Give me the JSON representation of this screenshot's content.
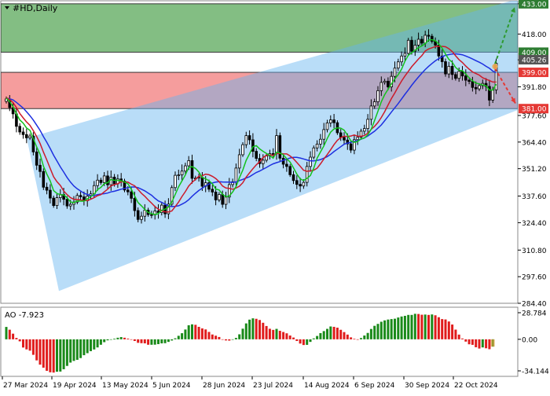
{
  "symbol_label": "#HD,Daily",
  "chart_data": [
    {
      "type": "candlestick",
      "title": "#HD,Daily",
      "y_ticks": [
        "433.00",
        "418.00",
        "405.20",
        "391.80",
        "377.60",
        "364.40",
        "351.20",
        "337.60",
        "324.40",
        "310.80",
        "297.60",
        "284.40"
      ],
      "ylim": [
        284.4,
        434.5
      ],
      "x_tick_labels": [
        "27 Mar 2024",
        "19 Apr 2024",
        "13 May 2024",
        "5 Jun 2024",
        "28 Jun 2024",
        "23 Jul 2024",
        "14 Aug 2024",
        "6 Sep 2024",
        "30 Sep 2024",
        "22 Oct 2024"
      ],
      "price_labels": [
        {
          "value": 433.0,
          "text": "433.00",
          "color": "#2e7d32"
        },
        {
          "value": 409.0,
          "text": "409.00",
          "color": "#2e7d32"
        },
        {
          "value": 405.26,
          "text": "405.26",
          "color": "#555555"
        },
        {
          "value": 399.0,
          "text": "399.00",
          "color": "#e53935"
        },
        {
          "value": 381.0,
          "text": "381.00",
          "color": "#e53935"
        }
      ],
      "zones": [
        {
          "name": "resistance",
          "from": 409,
          "to": 433,
          "color": "#5aa85a"
        },
        {
          "name": "support",
          "from": 381,
          "to": 399,
          "color": "#f27c7c"
        }
      ],
      "channel": {
        "color": "#64b4f0",
        "upper": [
          [
            34,
            366.4
          ],
          [
            660,
            435.5
          ]
        ],
        "lower": [
          [
            75,
            290.5
          ],
          [
            660,
            380.5
          ]
        ]
      },
      "forecast_arrows": [
        {
          "color": "#2e9a2e",
          "from": [
            630,
            403.2
          ],
          "to": [
            655,
            431.3
          ]
        },
        {
          "color": "#e53935",
          "from": [
            630,
            400.9
          ],
          "to": [
            656,
            383.6
          ]
        }
      ],
      "closes": [
        385.8,
        381.5,
        378.4,
        372.2,
        369.4,
        368.1,
        366.5,
        367.4,
        359.5,
        352.9,
        349.8,
        342.0,
        340.5,
        336.6,
        332.9,
        336.8,
        338.4,
        336.0,
        332.7,
        333.5,
        334.6,
        337.9,
        337.2,
        335.3,
        337.6,
        338.7,
        342.8,
        345.5,
        344.3,
        347.6,
        343.2,
        347.0,
        343.7,
        346.1,
        345.0,
        340.6,
        339.7,
        336.5,
        330.4,
        326.0,
        327.6,
        330.6,
        328.4,
        328.3,
        330.2,
        329.4,
        333.1,
        328.8,
        333.6,
        341.8,
        347.9,
        348.1,
        350.0,
        352.6,
        355.2,
        346.4,
        346.5,
        346.9,
        342.5,
        344.2,
        341.0,
        339.6,
        335.7,
        338.4,
        333.5,
        337.1,
        343.3,
        344.7,
        351.5,
        358.1,
        363.1,
        367.6,
        365.5,
        359.8,
        356.3,
        353.7,
        355.4,
        357.5,
        358.7,
        358.6,
        367.6,
        356.4,
        353.4,
        352.3,
        348.2,
        345.3,
        343.4,
        342.6,
        344.4,
        352.3,
        356.9,
        361.5,
        363.4,
        365.8,
        370.6,
        373.9,
        375.4,
        374.0,
        369.0,
        366.7,
        365.4,
        363.5,
        360.4,
        365.6,
        366.8,
        369.8,
        371.1,
        375.7,
        382.3,
        384.4,
        389.9,
        394.0,
        394.6,
        391.8,
        397.0,
        401.1,
        404.2,
        407.1,
        408.4,
        414.9,
        409.5,
        412.5,
        415.4,
        413.5,
        417.4,
        416.9,
        414.4,
        412.5,
        407.1,
        404.3,
        398.2,
        402.0,
        397.9,
        396.0,
        399.5,
        397.2,
        395.1,
        394.5,
        391.5,
        390.8,
        392.4,
        393.5,
        392.0,
        385.2,
        390.3,
        403.5
      ],
      "ma_green": [
        386.2,
        384.5,
        382.0,
        378.4,
        375.4,
        373.8,
        371.4,
        370.2,
        366.1,
        362.0,
        358.4,
        352.4,
        348.5,
        345.1,
        340.3,
        338.9,
        338.3,
        338.2,
        336.8,
        334.7,
        334.3,
        335.2,
        335.1,
        335.1,
        336.2,
        337.3,
        338.5,
        340.8,
        341.9,
        343.8,
        344.3,
        345.8,
        345.4,
        345.4,
        345.2,
        344.6,
        343.7,
        341.0,
        337.7,
        334.4,
        332.8,
        331.0,
        329.5,
        328.9,
        328.4,
        328.9,
        330.6,
        331.1,
        332.2,
        334.7,
        338.4,
        342.2,
        345.1,
        348.1,
        351.8,
        352.2,
        351.3,
        349.5,
        346.8,
        346.2,
        345.2,
        343.7,
        341.1,
        340.6,
        338.5,
        337.3,
        337.7,
        339.6,
        342.3,
        346.7,
        350.5,
        355.3,
        358.6,
        362.1,
        362.6,
        361.0,
        359.8,
        358.8,
        357.7,
        356.4,
        359.4,
        359.0,
        358.1,
        356.1,
        354.5,
        351.6,
        348.5,
        346.1,
        345.3,
        346.4,
        347.8,
        351.4,
        356.4,
        359.5,
        362.5,
        366.2,
        369.3,
        370.9,
        371.4,
        371.3,
        370.3,
        367.8,
        365.0,
        364.3,
        364.7,
        366.0,
        366.4,
        368.0,
        370.7,
        375.1,
        379.7,
        384.4,
        387.9,
        390.6,
        393.2,
        395.7,
        397.8,
        400.6,
        404.5,
        407.5,
        408.7,
        410.0,
        411.3,
        412.1,
        413.3,
        415.0,
        415.2,
        414.6,
        413.1,
        411.0,
        408.1,
        405.4,
        404.0,
        401.4,
        400.0,
        399.8,
        398.2,
        396.3,
        394.8,
        393.7,
        393.2,
        392.7,
        392.4,
        390.2,
        390.2,
        393.1
      ],
      "ma_red": [
        386.4,
        385.5,
        384.0,
        381.5,
        378.6,
        376.4,
        374.4,
        372.7,
        370.1,
        367.1,
        363.7,
        359.4,
        355.5,
        351.3,
        347.2,
        344.7,
        342.9,
        340.1,
        338.3,
        336.8,
        336.0,
        335.9,
        335.7,
        335.3,
        335.4,
        336.0,
        336.8,
        337.8,
        338.3,
        339.7,
        341.0,
        342.7,
        343.3,
        343.7,
        344.7,
        344.6,
        344.5,
        343.5,
        342.7,
        340.9,
        339.0,
        337.5,
        335.7,
        334.1,
        332.4,
        331.1,
        330.3,
        329.8,
        329.7,
        330.2,
        332.4,
        334.6,
        337.4,
        339.8,
        342.6,
        344.4,
        345.9,
        347.5,
        347.7,
        348.5,
        348.2,
        347.4,
        346.3,
        344.7,
        342.6,
        341.6,
        341.4,
        341.0,
        341.6,
        342.5,
        344.2,
        347.0,
        349.1,
        351.2,
        353.1,
        354.7,
        356.7,
        357.9,
        358.0,
        357.8,
        358.7,
        358.7,
        358.6,
        358.5,
        357.5,
        356.1,
        354.3,
        352.4,
        350.4,
        349.9,
        350.1,
        350.4,
        351.4,
        353.6,
        356.0,
        358.2,
        360.6,
        363.1,
        365.3,
        366.6,
        367.3,
        367.2,
        367.4,
        367.9,
        367.3,
        367.3,
        367.6,
        368.8,
        370.7,
        372.2,
        374.1,
        376.6,
        379.5,
        382.8,
        386.0,
        388.8,
        391.8,
        394.7,
        397.2,
        399.5,
        401.8,
        403.7,
        405.6,
        407.3,
        409.6,
        410.6,
        411.2,
        411.8,
        411.9,
        411.9,
        411.7,
        410.7,
        409.3,
        407.2,
        405.3,
        403.9,
        402.1,
        400.6,
        399.2,
        398.4,
        397.6,
        396.3,
        395.6,
        394.9,
        394.2,
        394.2
      ],
      "ma_blue": [
        386.2,
        385.9,
        385.3,
        384.1,
        382.7,
        381.3,
        379.4,
        377.5,
        375.3,
        372.8,
        370.2,
        367.1,
        364.3,
        361.2,
        357.9,
        355.0,
        352.1,
        349.5,
        346.8,
        344.5,
        342.6,
        341.2,
        340.1,
        339.0,
        338.4,
        337.8,
        337.9,
        338.3,
        338.6,
        338.8,
        339.1,
        339.7,
        340.0,
        340.5,
        341.0,
        341.4,
        341.8,
        342.1,
        342.1,
        341.8,
        341.0,
        340.2,
        339.1,
        338.0,
        336.5,
        335.2,
        334.5,
        333.6,
        332.8,
        332.4,
        332.5,
        332.8,
        333.6,
        334.5,
        335.8,
        337.5,
        339.0,
        340.4,
        341.5,
        342.7,
        343.6,
        344.1,
        344.5,
        344.7,
        344.6,
        344.5,
        344.5,
        344.4,
        344.6,
        345.3,
        345.9,
        346.6,
        347.2,
        348.3,
        349.3,
        350.0,
        350.9,
        351.8,
        352.8,
        353.6,
        354.2,
        354.7,
        355.4,
        355.9,
        356.5,
        356.8,
        356.8,
        356.5,
        356.0,
        355.5,
        355.1,
        355.1,
        355.3,
        355.7,
        356.4,
        357.2,
        358.3,
        359.7,
        360.9,
        362.1,
        363.3,
        363.9,
        364.3,
        364.7,
        365.2,
        365.8,
        366.5,
        367.4,
        368.6,
        369.8,
        371.3,
        372.9,
        375.0,
        377.1,
        379.3,
        381.4,
        383.5,
        385.8,
        388.1,
        390.3,
        392.6,
        394.7,
        396.7,
        398.6,
        400.4,
        402.0,
        403.4,
        404.7,
        405.8,
        406.7,
        407.5,
        407.8,
        408.1,
        408.2,
        408.0,
        407.7,
        407.1,
        406.4,
        405.6,
        404.8,
        404.0,
        403.1,
        402.0,
        401.0,
        399.6,
        398.8
      ]
    },
    {
      "type": "bar",
      "title": "AO -7.923",
      "y_ticks": [
        "28.784",
        "0.00",
        "-34.144"
      ],
      "ylim": [
        -34.144,
        28.784
      ],
      "values": [
        13.4,
        10.4,
        6.1,
        1.5,
        -2.2,
        -8.9,
        -10.9,
        -12.3,
        -16.8,
        -22.8,
        -27.4,
        -30.7,
        -34.1,
        -35.7,
        -36.0,
        -35.1,
        -34.9,
        -32.4,
        -28.8,
        -25.2,
        -23.4,
        -22.2,
        -20.3,
        -17.2,
        -15.0,
        -12.8,
        -11.0,
        -8.8,
        -5.9,
        -3.1,
        -1.1,
        0.0,
        0.7,
        1.7,
        2.4,
        1.7,
        0.8,
        -0.3,
        -1.8,
        -3.8,
        -4.2,
        -4.4,
        -5.9,
        -5.9,
        -5.8,
        -5.2,
        -4.4,
        -4.2,
        -2.8,
        -1.3,
        1.1,
        3.8,
        6.6,
        10.6,
        15.2,
        16.2,
        15.7,
        13.5,
        11.8,
        10.7,
        8.0,
        5.2,
        3.9,
        2.5,
        -0.5,
        -1.2,
        -1.4,
        -0.1,
        1.5,
        5.4,
        11.5,
        17.2,
        21.3,
        22.7,
        22.2,
        20.9,
        17.9,
        14.4,
        11.4,
        10.2,
        11.3,
        9.2,
        7.9,
        6.5,
        4.1,
        1.9,
        -1.8,
        -4.6,
        -6.2,
        -6.0,
        -2.8,
        1.0,
        3.6,
        6.7,
        8.9,
        11.3,
        13.9,
        13.5,
        12.6,
        10.3,
        7.8,
        5.1,
        2.1,
        0.6,
        -0.3,
        1.4,
        4.1,
        6.9,
        11.2,
        14.6,
        16.7,
        19.0,
        20.5,
        21.4,
        21.9,
        22.3,
        23.6,
        24.7,
        25.4,
        26.4,
        26.4,
        27.6,
        27.4,
        26.6,
        26.8,
        26.4,
        26.9,
        26.0,
        23.9,
        21.9,
        21.5,
        19.3,
        16.0,
        10.5,
        5.1,
        0.9,
        -2.5,
        -5.4,
        -6.0,
        -8.6,
        -10.0,
        -8.8,
        -9.7,
        -10.7,
        -7.9
      ]
    }
  ]
}
